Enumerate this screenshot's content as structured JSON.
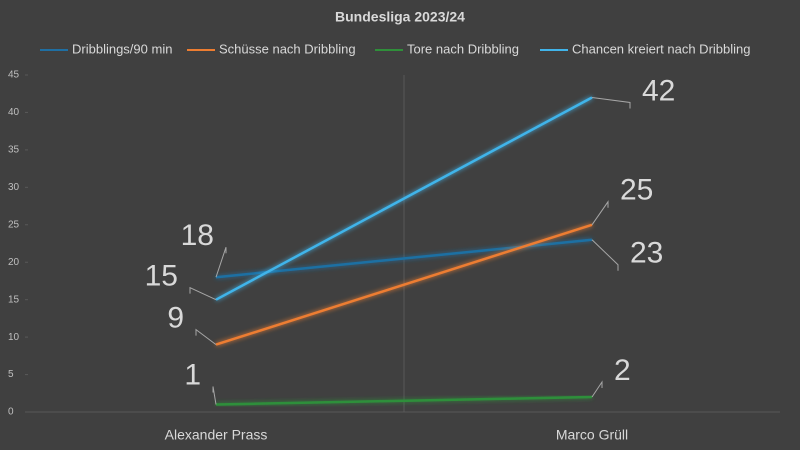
{
  "chart_data": {
    "type": "line",
    "title": "Bundesliga 2023/24",
    "categories": [
      "Alexander Prass",
      "Marco Grüll"
    ],
    "series": [
      {
        "name": "Dribblings/90 min",
        "color": "#1f6fa3",
        "values": [
          18,
          23
        ]
      },
      {
        "name": "Schüsse nach Dribbling",
        "color": "#ed7d31",
        "values": [
          9,
          25
        ]
      },
      {
        "name": "Tore nach Dribbling",
        "color": "#2f8f3a",
        "values": [
          1,
          2
        ]
      },
      {
        "name": "Chancen kreiert nach Dribbling",
        "color": "#41b4ea",
        "values": [
          15,
          42
        ]
      }
    ],
    "ylim": [
      0,
      45
    ],
    "yticks": [
      0,
      5,
      10,
      15,
      20,
      25,
      30,
      35,
      40,
      45
    ],
    "legend": "top"
  }
}
